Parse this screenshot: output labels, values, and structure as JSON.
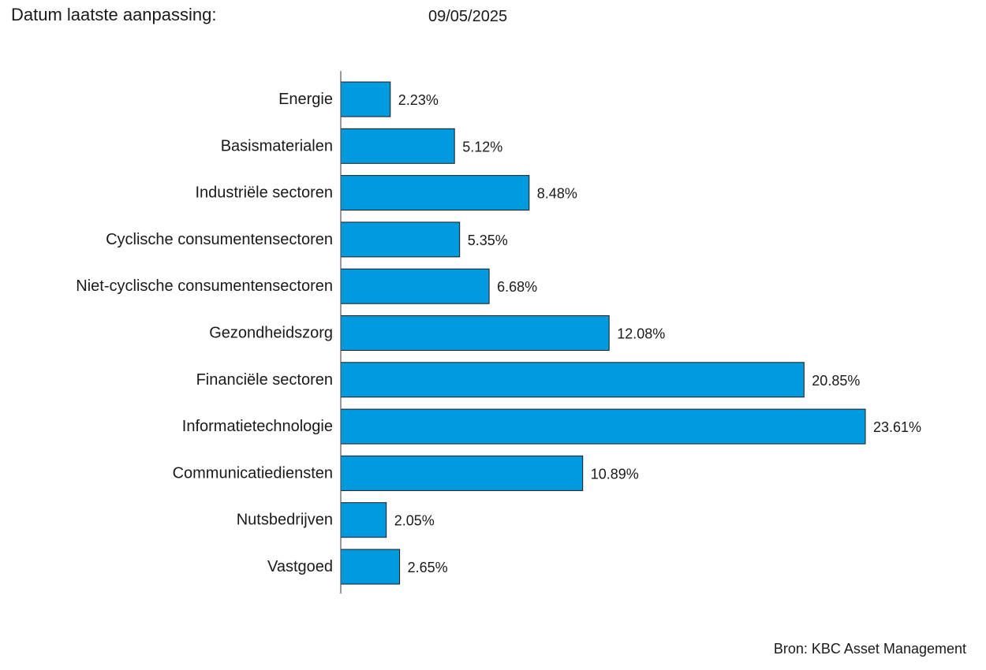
{
  "header": {
    "date_label": "Datum laatste aanpassing:",
    "date_value": "09/05/2025"
  },
  "source": "Bron: KBC Asset Management",
  "colors": {
    "bar_fill": "#009ADE",
    "bar_stroke": "#1a1a1a",
    "axis": "#555555",
    "text": "#1a1a1a"
  },
  "chart_data": {
    "type": "bar",
    "orientation": "horizontal",
    "categories": [
      "Energie",
      "Basismaterialen",
      "Industriële sectoren",
      "Cyclische consumentensectoren",
      "Niet-cyclische consumentensectoren",
      "Gezondheidszorg",
      "Financiële sectoren",
      "Informatietechnologie",
      "Communicatiediensten",
      "Nutsbedrijven",
      "Vastgoed"
    ],
    "values": [
      2.23,
      5.12,
      8.48,
      5.35,
      6.68,
      12.08,
      20.85,
      23.61,
      10.89,
      2.05,
      2.65
    ],
    "value_labels": [
      "2.23%",
      "5.12%",
      "8.48%",
      "5.35%",
      "6.68%",
      "12.08%",
      "20.85%",
      "23.61%",
      "10.89%",
      "2.05%",
      "2.65%"
    ],
    "title": "",
    "xlabel": "",
    "ylabel": "",
    "xlim": [
      0,
      23.61
    ],
    "grid": false,
    "legend": "none"
  }
}
